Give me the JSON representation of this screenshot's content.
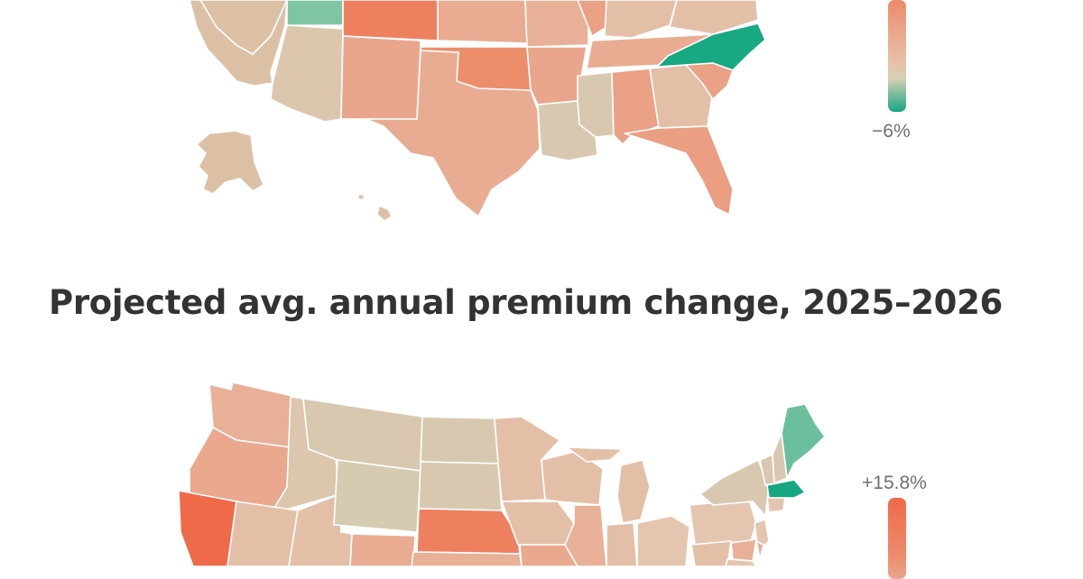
{
  "colors": {
    "background": "#ffffff",
    "high": "#ee6a48",
    "mid_high": "#e9a68d",
    "neutral": "#d8c8b0",
    "low": "#16a683",
    "title": "#333333",
    "legend_text": "#6f6f6f"
  },
  "top_map": {
    "legend_min_label": "−6%"
  },
  "title": "Projected avg. annual premium change, 2025–2026",
  "bottom_map": {
    "legend_max_label": "+15.8%"
  }
}
